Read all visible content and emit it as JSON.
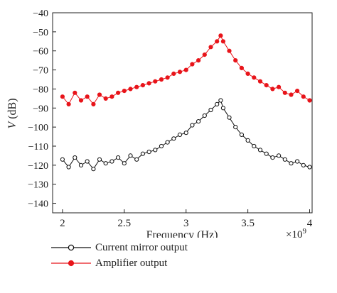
{
  "chart_data": {
    "type": "line",
    "xlabel": "Frequency (Hz)",
    "ylabel_italic": "V",
    "ylabel_unit": " (dB)",
    "x_exponent_label": "×10",
    "x_exponent": "9",
    "xlim": [
      1.92,
      4.02
    ],
    "ylim": [
      -145,
      -40
    ],
    "x_ticks": [
      2,
      2.5,
      3,
      3.5,
      4
    ],
    "x_tick_labels": [
      "2",
      "2.5",
      "3",
      "3.5",
      "4"
    ],
    "y_ticks": [
      -40,
      -50,
      -60,
      -70,
      -80,
      -90,
      -100,
      -110,
      -120,
      -130,
      -140
    ],
    "y_tick_labels": [
      "−40",
      "−50",
      "−60",
      "−70",
      "−80",
      "−90",
      "−100",
      "−110",
      "−120",
      "−130",
      "−140"
    ],
    "grid": false,
    "legend_position": "bottom-left-outside",
    "series": [
      {
        "name": "Current mirror output",
        "color": "#111111",
        "marker": "open-circle",
        "x": [
          2.0,
          2.05,
          2.1,
          2.15,
          2.2,
          2.25,
          2.3,
          2.35,
          2.4,
          2.45,
          2.5,
          2.55,
          2.6,
          2.65,
          2.7,
          2.75,
          2.8,
          2.85,
          2.9,
          2.95,
          3.0,
          3.05,
          3.1,
          3.15,
          3.2,
          3.25,
          3.28,
          3.3,
          3.35,
          3.4,
          3.45,
          3.5,
          3.55,
          3.6,
          3.65,
          3.7,
          3.75,
          3.8,
          3.85,
          3.9,
          3.95,
          4.0
        ],
        "y": [
          -117,
          -121,
          -116,
          -120,
          -118,
          -122,
          -117,
          -119,
          -118,
          -116,
          -119,
          -115,
          -117,
          -114,
          -113,
          -112,
          -110,
          -108,
          -106,
          -104,
          -103,
          -99,
          -97,
          -94,
          -91,
          -88,
          -86,
          -90,
          -95,
          -100,
          -104,
          -107,
          -110,
          -112,
          -114,
          -116,
          -115,
          -117,
          -119,
          -118,
          -120,
          -121
        ]
      },
      {
        "name": "Amplifier output",
        "color": "#e8141a",
        "marker": "filled-circle",
        "x": [
          2.0,
          2.05,
          2.1,
          2.15,
          2.2,
          2.25,
          2.3,
          2.35,
          2.4,
          2.45,
          2.5,
          2.55,
          2.6,
          2.65,
          2.7,
          2.75,
          2.8,
          2.85,
          2.9,
          2.95,
          3.0,
          3.05,
          3.1,
          3.15,
          3.2,
          3.25,
          3.28,
          3.3,
          3.35,
          3.4,
          3.45,
          3.5,
          3.55,
          3.6,
          3.65,
          3.7,
          3.75,
          3.8,
          3.85,
          3.9,
          3.95,
          4.0
        ],
        "y": [
          -84,
          -88,
          -82,
          -86,
          -84,
          -88,
          -83,
          -85,
          -84,
          -82,
          -81,
          -80,
          -79,
          -78,
          -77,
          -76,
          -75,
          -74,
          -72,
          -71,
          -70,
          -67,
          -65,
          -62,
          -58,
          -55,
          -52,
          -55,
          -60,
          -65,
          -69,
          -72,
          -74,
          -76,
          -78,
          -80,
          -79,
          -82,
          -83,
          -81,
          -84,
          -86
        ]
      }
    ]
  }
}
